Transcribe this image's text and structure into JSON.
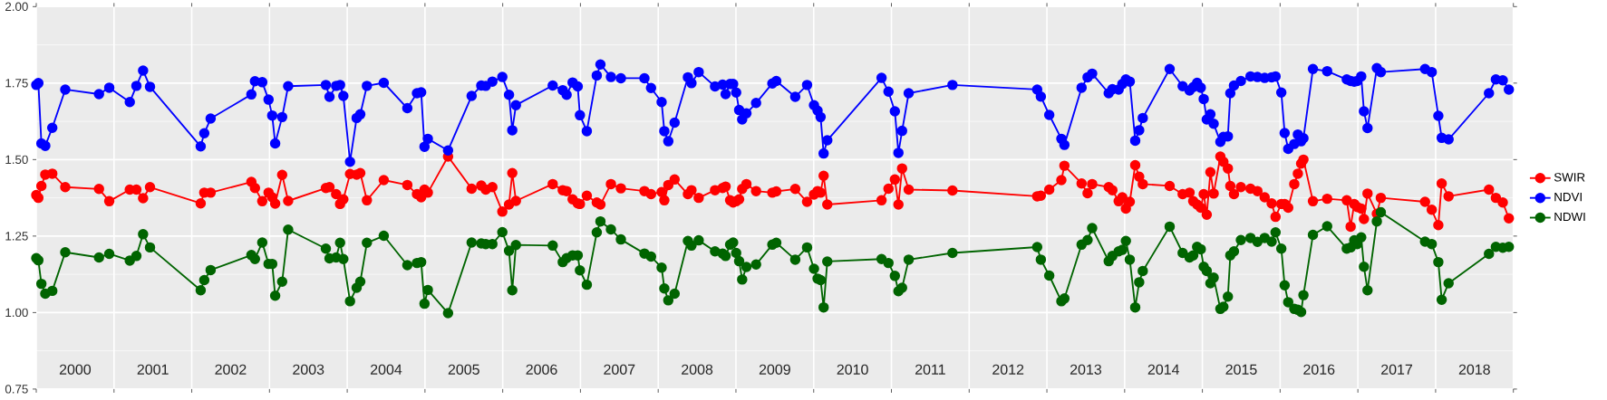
{
  "chart_data": {
    "type": "line",
    "x": [
      2000.0,
      2000.027,
      2000.066,
      2000.116,
      2000.206,
      2000.373,
      2000.807,
      2000.939,
      2001.203,
      2001.288,
      2001.374,
      2001.463,
      2002.115,
      2002.161,
      2002.243,
      2002.767,
      2002.813,
      2002.907,
      2002.988,
      2003.035,
      2003.073,
      2003.163,
      2003.24,
      2003.725,
      2003.772,
      2003.857,
      2003.908,
      2003.95,
      2004.036,
      2004.121,
      2004.168,
      2004.253,
      2004.47,
      2004.773,
      2004.897,
      2004.951,
      2004.994,
      2005.037,
      2005.297,
      2005.6,
      2005.724,
      2005.782,
      2005.867,
      2005.995,
      2006.081,
      2006.123,
      2006.17,
      2006.643,
      2006.772,
      2006.822,
      2006.899,
      2006.965,
      2006.993,
      2007.082,
      2007.21,
      2007.257,
      2007.392,
      2007.52,
      2007.823,
      2007.908,
      2008.044,
      2008.079,
      2008.13,
      2008.211,
      2008.382,
      2008.428,
      2008.521,
      2008.731,
      2008.828,
      2008.867,
      2008.925,
      2008.964,
      2009.003,
      2009.041,
      2009.08,
      2009.135,
      2009.259,
      2009.468,
      2009.519,
      2009.763,
      2009.915,
      2010.004,
      2010.05,
      2010.089,
      2010.128,
      2010.175,
      2010.873,
      2010.962,
      2011.044,
      2011.09,
      2011.137,
      2011.222,
      2011.785,
      2012.875,
      2012.922,
      2013.03,
      2013.186,
      2013.225,
      2013.446,
      2013.523,
      2013.582,
      2013.795,
      2013.842,
      2013.923,
      2013.97,
      2014.016,
      2014.066,
      2014.136,
      2014.187,
      2014.233,
      2014.579,
      2014.746,
      2014.835,
      2014.882,
      2014.932,
      2014.979,
      2015.017,
      2015.056,
      2015.103,
      2015.145,
      2015.231,
      2015.27,
      2015.328,
      2015.359,
      2015.406,
      2015.495,
      2015.619,
      2015.708,
      2015.801,
      2015.891,
      2015.941,
      2016.015,
      2016.058,
      2016.104,
      2016.182,
      2016.228,
      2016.27,
      2016.3,
      2016.422,
      2016.605,
      2016.857,
      2016.907,
      2016.953,
      2016.992,
      2017.043,
      2017.078,
      2017.124,
      2017.244,
      2017.295,
      2017.864,
      2017.95,
      2018.035,
      2018.078,
      2018.167,
      2018.686,
      2018.775,
      2018.864,
      2018.942
    ],
    "series": [
      {
        "name": "SWIR",
        "color": "#ff0000",
        "values": [
          1.384,
          1.375,
          1.414,
          1.451,
          1.454,
          1.41,
          1.404,
          1.364,
          1.402,
          1.402,
          1.374,
          1.41,
          1.357,
          1.392,
          1.392,
          1.427,
          1.407,
          1.364,
          1.392,
          1.377,
          1.356,
          1.45,
          1.365,
          1.407,
          1.41,
          1.387,
          1.355,
          1.37,
          1.453,
          1.451,
          1.456,
          1.367,
          1.433,
          1.417,
          1.387,
          1.377,
          1.402,
          1.392,
          1.51,
          1.405,
          1.415,
          1.402,
          1.41,
          1.33,
          1.353,
          1.456,
          1.365,
          1.42,
          1.4,
          1.397,
          1.37,
          1.357,
          1.355,
          1.382,
          1.36,
          1.353,
          1.42,
          1.406,
          1.397,
          1.387,
          1.394,
          1.367,
          1.417,
          1.435,
          1.387,
          1.4,
          1.375,
          1.4,
          1.407,
          1.412,
          1.367,
          1.36,
          1.364,
          1.37,
          1.404,
          1.42,
          1.397,
          1.392,
          1.396,
          1.404,
          1.362,
          1.386,
          1.397,
          1.392,
          1.447,
          1.353,
          1.367,
          1.405,
          1.435,
          1.353,
          1.471,
          1.402,
          1.399,
          1.38,
          1.382,
          1.402,
          1.433,
          1.48,
          1.422,
          1.39,
          1.42,
          1.41,
          1.4,
          1.364,
          1.377,
          1.34,
          1.362,
          1.482,
          1.444,
          1.42,
          1.414,
          1.387,
          1.392,
          1.364,
          1.353,
          1.343,
          1.387,
          1.32,
          1.459,
          1.389,
          1.51,
          1.493,
          1.471,
          1.414,
          1.387,
          1.41,
          1.405,
          1.397,
          1.377,
          1.357,
          1.313,
          1.355,
          1.355,
          1.343,
          1.42,
          1.454,
          1.487,
          1.5,
          1.364,
          1.372,
          1.367,
          1.281,
          1.355,
          1.345,
          1.34,
          1.306,
          1.389,
          1.323,
          1.375,
          1.362,
          1.336,
          1.286,
          1.422,
          1.38,
          1.402,
          1.375,
          1.36,
          1.308
        ]
      },
      {
        "name": "NDVI",
        "color": "#0000ff",
        "values": [
          1.744,
          1.75,
          1.553,
          1.545,
          1.604,
          1.729,
          1.714,
          1.735,
          1.688,
          1.741,
          1.791,
          1.738,
          1.543,
          1.586,
          1.634,
          1.713,
          1.756,
          1.753,
          1.696,
          1.644,
          1.553,
          1.639,
          1.74,
          1.744,
          1.705,
          1.741,
          1.744,
          1.708,
          1.493,
          1.636,
          1.648,
          1.741,
          1.751,
          1.668,
          1.717,
          1.72,
          1.542,
          1.568,
          1.53,
          1.708,
          1.742,
          1.741,
          1.755,
          1.77,
          1.712,
          1.596,
          1.678,
          1.742,
          1.727,
          1.712,
          1.752,
          1.739,
          1.645,
          1.593,
          1.775,
          1.811,
          1.77,
          1.766,
          1.766,
          1.734,
          1.688,
          1.593,
          1.56,
          1.621,
          1.769,
          1.75,
          1.786,
          1.739,
          1.745,
          1.714,
          1.747,
          1.747,
          1.719,
          1.662,
          1.631,
          1.651,
          1.685,
          1.749,
          1.757,
          1.705,
          1.744,
          1.678,
          1.66,
          1.639,
          1.52,
          1.563,
          1.767,
          1.722,
          1.658,
          1.522,
          1.594,
          1.717,
          1.744,
          1.729,
          1.706,
          1.646,
          1.568,
          1.548,
          1.735,
          1.769,
          1.781,
          1.717,
          1.73,
          1.729,
          1.747,
          1.762,
          1.755,
          1.562,
          1.596,
          1.636,
          1.796,
          1.74,
          1.726,
          1.737,
          1.751,
          1.735,
          1.698,
          1.631,
          1.648,
          1.617,
          1.558,
          1.574,
          1.576,
          1.717,
          1.742,
          1.757,
          1.772,
          1.77,
          1.767,
          1.769,
          1.772,
          1.719,
          1.587,
          1.535,
          1.551,
          1.582,
          1.56,
          1.57,
          1.796,
          1.789,
          1.762,
          1.757,
          1.755,
          1.757,
          1.772,
          1.658,
          1.603,
          1.799,
          1.786,
          1.796,
          1.786,
          1.643,
          1.571,
          1.566,
          1.717,
          1.762,
          1.759,
          1.729
        ]
      },
      {
        "name": "NDWI",
        "color": "#006400",
        "values": [
          1.178,
          1.171,
          1.094,
          1.062,
          1.071,
          1.197,
          1.18,
          1.192,
          1.17,
          1.185,
          1.256,
          1.213,
          1.073,
          1.106,
          1.139,
          1.188,
          1.175,
          1.229,
          1.159,
          1.159,
          1.055,
          1.101,
          1.271,
          1.209,
          1.177,
          1.18,
          1.228,
          1.175,
          1.037,
          1.081,
          1.101,
          1.228,
          1.251,
          1.155,
          1.162,
          1.165,
          1.029,
          1.074,
          0.998,
          1.229,
          1.226,
          1.224,
          1.224,
          1.263,
          1.202,
          1.073,
          1.221,
          1.219,
          1.165,
          1.178,
          1.187,
          1.187,
          1.138,
          1.091,
          1.262,
          1.298,
          1.272,
          1.239,
          1.193,
          1.183,
          1.147,
          1.079,
          1.04,
          1.062,
          1.234,
          1.219,
          1.236,
          1.2,
          1.193,
          1.185,
          1.222,
          1.229,
          1.195,
          1.168,
          1.108,
          1.149,
          1.157,
          1.222,
          1.228,
          1.173,
          1.213,
          1.143,
          1.111,
          1.106,
          1.017,
          1.167,
          1.175,
          1.162,
          1.12,
          1.07,
          1.081,
          1.173,
          1.195,
          1.214,
          1.173,
          1.121,
          1.037,
          1.046,
          1.222,
          1.237,
          1.276,
          1.168,
          1.185,
          1.2,
          1.205,
          1.234,
          1.173,
          1.017,
          1.099,
          1.136,
          1.281,
          1.195,
          1.18,
          1.187,
          1.215,
          1.207,
          1.15,
          1.136,
          1.096,
          1.114,
          1.012,
          1.019,
          1.052,
          1.187,
          1.2,
          1.237,
          1.244,
          1.231,
          1.244,
          1.232,
          1.262,
          1.209,
          1.089,
          1.034,
          1.012,
          1.009,
          1.002,
          1.057,
          1.254,
          1.282,
          1.209,
          1.213,
          1.236,
          1.224,
          1.246,
          1.15,
          1.073,
          1.298,
          1.328,
          1.232,
          1.224,
          1.165,
          1.042,
          1.096,
          1.192,
          1.215,
          1.212,
          1.215
        ]
      }
    ],
    "xlim": [
      2000,
      2019
    ],
    "xticks": [
      {
        "value": 2000,
        "label": null
      },
      {
        "value": 2000.5,
        "label": "2000"
      },
      {
        "value": 2001,
        "label": null
      },
      {
        "value": 2001.5,
        "label": "2001"
      },
      {
        "value": 2002,
        "label": null
      },
      {
        "value": 2002.5,
        "label": "2002"
      },
      {
        "value": 2003,
        "label": null
      },
      {
        "value": 2003.5,
        "label": "2003"
      },
      {
        "value": 2004,
        "label": null
      },
      {
        "value": 2004.5,
        "label": "2004"
      },
      {
        "value": 2005,
        "label": null
      },
      {
        "value": 2005.5,
        "label": "2005"
      },
      {
        "value": 2006,
        "label": null
      },
      {
        "value": 2006.5,
        "label": "2006"
      },
      {
        "value": 2007,
        "label": null
      },
      {
        "value": 2007.5,
        "label": "2007"
      },
      {
        "value": 2008,
        "label": null
      },
      {
        "value": 2008.5,
        "label": "2008"
      },
      {
        "value": 2009,
        "label": null
      },
      {
        "value": 2009.5,
        "label": "2009"
      },
      {
        "value": 2010,
        "label": null
      },
      {
        "value": 2010.5,
        "label": "2010"
      },
      {
        "value": 2011,
        "label": null
      },
      {
        "value": 2011.5,
        "label": "2011"
      },
      {
        "value": 2012,
        "label": null
      },
      {
        "value": 2012.5,
        "label": "2012"
      },
      {
        "value": 2013,
        "label": null
      },
      {
        "value": 2013.5,
        "label": "2013"
      },
      {
        "value": 2014,
        "label": null
      },
      {
        "value": 2014.5,
        "label": "2014"
      },
      {
        "value": 2015,
        "label": null
      },
      {
        "value": 2015.5,
        "label": "2015"
      },
      {
        "value": 2016,
        "label": null
      },
      {
        "value": 2016.5,
        "label": "2016"
      },
      {
        "value": 2017,
        "label": null
      },
      {
        "value": 2017.5,
        "label": "2017"
      },
      {
        "value": 2018,
        "label": null
      },
      {
        "value": 2018.5,
        "label": "2018"
      },
      {
        "value": 2019,
        "label": null
      }
    ],
    "ylim": [
      0.75,
      2.0
    ],
    "yticks": [
      {
        "value": 0.75,
        "label": "0.75"
      },
      {
        "value": 1.0,
        "label": "1.00"
      },
      {
        "value": 1.25,
        "label": "1.25"
      },
      {
        "value": 1.5,
        "label": "1.50"
      },
      {
        "value": 1.75,
        "label": "1.75"
      },
      {
        "value": 2.0,
        "label": "2.00"
      }
    ],
    "grid": true,
    "legend": "right",
    "marker": "circle",
    "line_style": "solid"
  }
}
